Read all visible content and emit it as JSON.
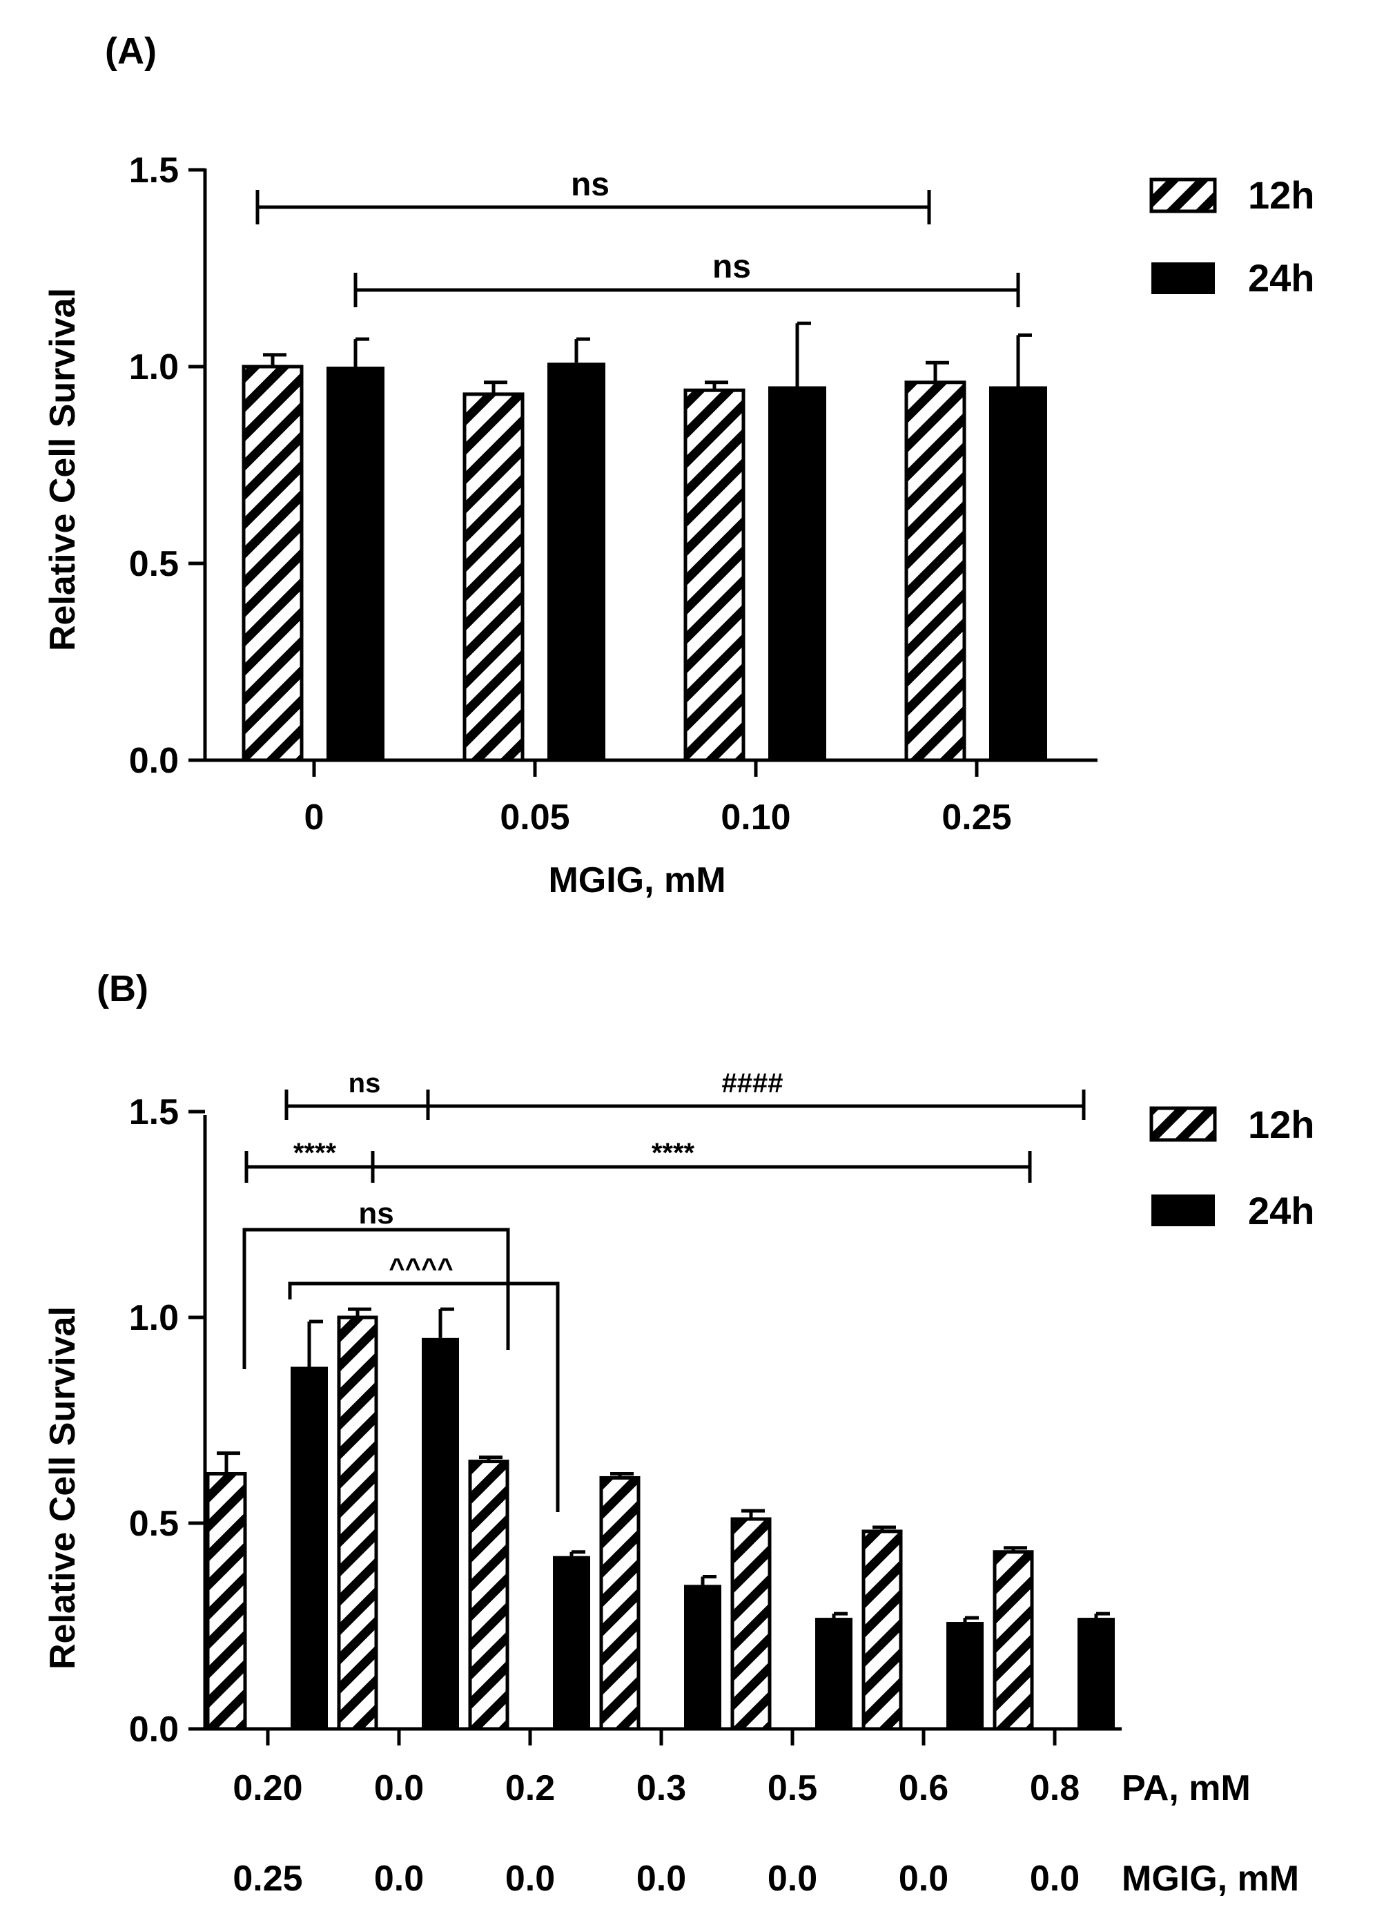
{
  "colors": {
    "bar_24h": "#000000",
    "hatch": "#000000",
    "background": "#ffffff"
  },
  "chart_data": [
    {
      "panel": "(A)",
      "type": "bar",
      "ylabel": "Relative Cell Survival",
      "xlabel": "MGIG, mM",
      "ylim": [
        0,
        1.5
      ],
      "yticks": [
        "0.0",
        "0.5",
        "1.0",
        "1.5"
      ],
      "categories": [
        "0",
        "0.05",
        "0.10",
        "0.25"
      ],
      "series": [
        {
          "name": "12h",
          "pattern": "hatched",
          "values": [
            1.0,
            0.93,
            0.94,
            0.96
          ],
          "errors": [
            0.03,
            0.03,
            0.02,
            0.05
          ]
        },
        {
          "name": "24h",
          "pattern": "solid",
          "values": [
            1.0,
            1.01,
            0.95,
            0.95
          ],
          "errors": [
            0.07,
            0.06,
            0.16,
            0.13
          ]
        }
      ],
      "legend": {
        "placement": "top-right",
        "labels": [
          "12h",
          "24h"
        ]
      },
      "annotations": [
        {
          "text": "ns",
          "from": "12h @ 0",
          "to": "12h @ 0.25"
        },
        {
          "text": "ns",
          "from": "24h @ 0",
          "to": "24h @ 0.25"
        }
      ]
    },
    {
      "panel": "(B)",
      "type": "bar",
      "ylabel": "Relative Cell Survival",
      "ylim": [
        0,
        1.5
      ],
      "yticks": [
        "0.0",
        "0.5",
        "1.0",
        "1.5"
      ],
      "category_rows": [
        {
          "label": "PA, mM",
          "values": [
            "0.20",
            "0.0",
            "0.2",
            "0.3",
            "0.5",
            "0.6",
            "0.8"
          ]
        },
        {
          "label": "MGIG, mM",
          "values": [
            "0.25",
            "0.0",
            "0.0",
            "0.0",
            "0.0",
            "0.0",
            "0.0"
          ]
        }
      ],
      "series": [
        {
          "name": "12h",
          "pattern": "hatched",
          "values": [
            0.62,
            1.0,
            0.65,
            0.61,
            0.51,
            0.48,
            0.43
          ],
          "errors": [
            0.05,
            0.02,
            0.01,
            0.01,
            0.02,
            0.01,
            0.01
          ]
        },
        {
          "name": "24h",
          "pattern": "solid",
          "values": [
            0.88,
            0.95,
            0.42,
            0.35,
            0.27,
            0.26,
            0.27
          ],
          "errors": [
            0.11,
            0.07,
            0.01,
            0.02,
            0.01,
            0.01,
            0.01
          ]
        }
      ],
      "legend": {
        "placement": "top-right",
        "labels": [
          "12h",
          "24h"
        ]
      },
      "annotations": [
        {
          "text": "ns",
          "from": "24h @ 0.20/0.25",
          "to": "0.0/0.0 group"
        },
        {
          "text": "####",
          "from": "0.0/0.0 group",
          "to": "24h @ 0.8"
        },
        {
          "text": "****",
          "from": "12h @ 0.20/0.25",
          "to": "0.0/0.0 group"
        },
        {
          "text": "****",
          "from": "0.0/0.0 group",
          "to": "12h @ 0.8"
        },
        {
          "text": "ns",
          "from": "12h @ 0.20/0.25",
          "to": "12h @ 0.2"
        },
        {
          "text": "^^^^",
          "from": "24h @ 0.20/0.25",
          "to": "24h @ 0.2"
        }
      ]
    }
  ]
}
